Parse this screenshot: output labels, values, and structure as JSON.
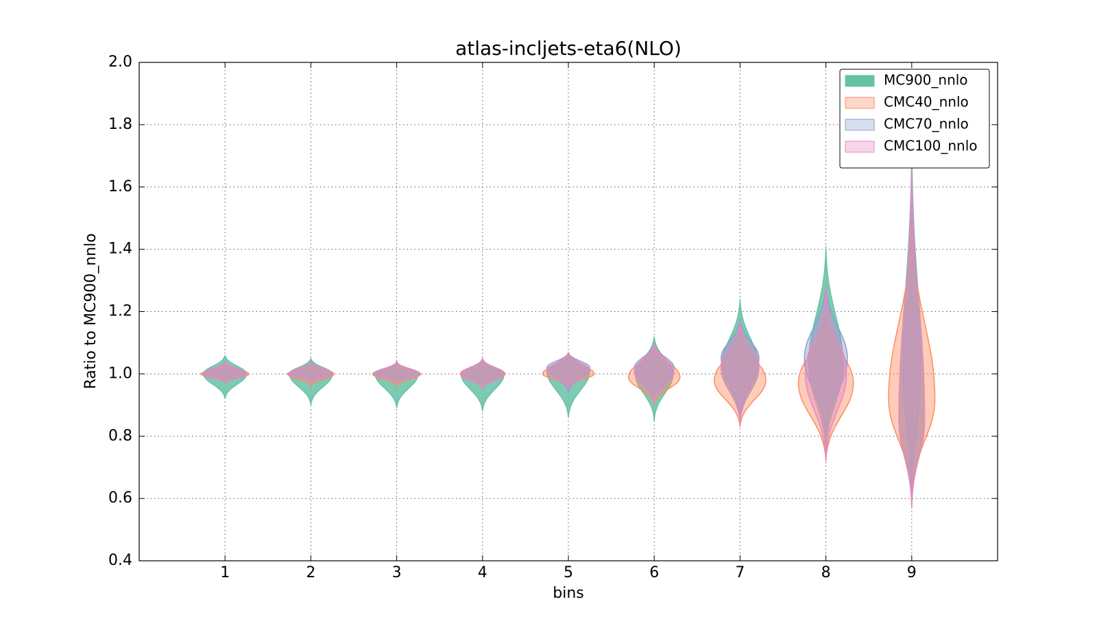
{
  "chart_data": {
    "type": "violin",
    "title": "atlas-incljets-eta6(NLO)",
    "xlabel": "bins",
    "ylabel": "Ratio to MC900_nnlo",
    "x": [
      1,
      2,
      3,
      4,
      5,
      6,
      7,
      8,
      9
    ],
    "xlim": [
      0,
      10
    ],
    "xticks": [
      1,
      2,
      3,
      4,
      5,
      6,
      7,
      8,
      9
    ],
    "ylim": [
      0.4,
      2.0
    ],
    "yticks": [
      0.4,
      0.6,
      0.8,
      {
        "value": 1.0,
        "label": "1.0"
      },
      1.2,
      1.4,
      1.6,
      1.8,
      {
        "value": 2.0,
        "label": "2.0"
      }
    ],
    "grid": true,
    "legend": "upper right",
    "series": [
      {
        "name": "MC900_nnlo",
        "color": "#66c2a5",
        "min": [
          0.92,
          0.9,
          0.89,
          0.88,
          0.86,
          0.85,
          0.84,
          0.74,
          0.57
        ],
        "mode": [
          1.0,
          1.0,
          1.0,
          1.0,
          1.01,
          1.0,
          1.02,
          1.03,
          0.85
        ],
        "max": [
          1.06,
          1.05,
          1.04,
          1.05,
          1.07,
          1.12,
          1.24,
          1.41,
          1.75
        ],
        "width": [
          0.25,
          0.25,
          0.25,
          0.25,
          0.25,
          0.22,
          0.22,
          0.2,
          0.15
        ]
      },
      {
        "name": "CMC40_nnlo",
        "color": "#fc8d62",
        "min": [
          0.97,
          0.96,
          0.96,
          0.95,
          0.96,
          0.9,
          0.83,
          0.72,
          0.6
        ],
        "mode": [
          1.0,
          1.0,
          1.0,
          1.0,
          1.0,
          0.99,
          0.98,
          0.97,
          0.92
        ],
        "max": [
          1.03,
          1.03,
          1.03,
          1.05,
          1.06,
          1.1,
          1.14,
          1.2,
          1.5
        ],
        "width": [
          0.28,
          0.27,
          0.28,
          0.26,
          0.3,
          0.3,
          0.3,
          0.32,
          0.27
        ]
      },
      {
        "name": "CMC70_nnlo",
        "color": "#8da0cb",
        "min": [
          0.97,
          0.97,
          0.97,
          0.95,
          0.94,
          0.9,
          0.85,
          0.8,
          0.6
        ],
        "mode": [
          1.0,
          1.0,
          1.0,
          1.0,
          1.02,
          1.02,
          1.05,
          1.05,
          1.0
        ],
        "max": [
          1.04,
          1.04,
          1.04,
          1.05,
          1.07,
          1.1,
          1.18,
          1.29,
          1.72
        ],
        "width": [
          0.25,
          0.26,
          0.27,
          0.25,
          0.25,
          0.23,
          0.22,
          0.25,
          0.1
        ]
      },
      {
        "name": "CMC100_nnlo",
        "color": "#e78ac3",
        "min": [
          0.97,
          0.97,
          0.97,
          0.95,
          0.95,
          0.9,
          0.84,
          0.72,
          0.57
        ],
        "mode": [
          1.0,
          1.0,
          1.0,
          1.0,
          1.01,
          1.01,
          1.03,
          1.0,
          0.85
        ],
        "max": [
          1.04,
          1.04,
          1.04,
          1.05,
          1.07,
          1.1,
          1.17,
          1.28,
          1.68
        ],
        "width": [
          0.26,
          0.26,
          0.26,
          0.25,
          0.25,
          0.23,
          0.22,
          0.24,
          0.15
        ]
      }
    ]
  }
}
